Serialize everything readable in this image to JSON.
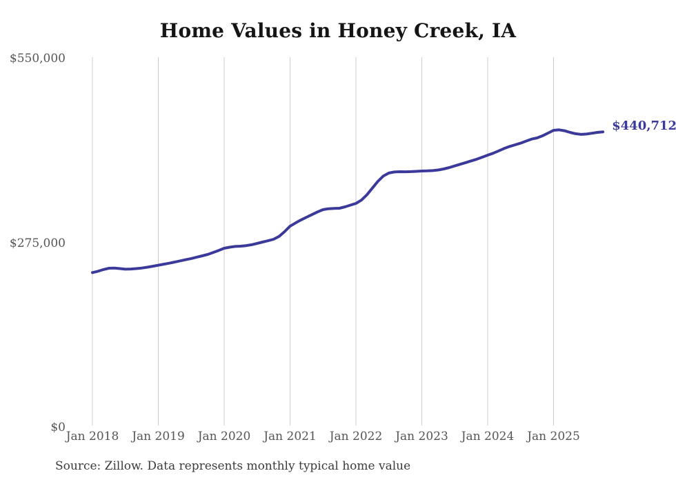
{
  "chart_data": {
    "type": "line",
    "title": "Home Values in Honey Creek, IA",
    "source_note": "Source: Zillow. Data represents monthly typical home value",
    "end_label": "$440,712",
    "end_value": 440712,
    "xlabel": "",
    "ylabel": "",
    "ylim": [
      0,
      550000
    ],
    "y_ticks": [
      "$550,000",
      "$275,000",
      "$0"
    ],
    "y_tick_values": [
      550000,
      275000,
      0
    ],
    "x_ticks": [
      "Jan 2018",
      "Jan 2019",
      "Jan 2020",
      "Jan 2021",
      "Jan 2022",
      "Jan 2023",
      "Jan 2024",
      "Jan 2025"
    ],
    "x_start_month": "2018-01",
    "x_end_month": "2025-10",
    "cadence": "monthly",
    "grid": "vertical-only",
    "legend": "none",
    "line_color": "#3b3999",
    "grid_color": "#cccccc",
    "series": [
      {
        "name": "Typical home value",
        "values": [
          231000,
          233000,
          235500,
          237500,
          237800,
          237000,
          236000,
          236300,
          237000,
          237800,
          239000,
          240500,
          242000,
          243500,
          245000,
          246700,
          248500,
          250200,
          252000,
          254000,
          256000,
          258000,
          261000,
          264000,
          267300,
          268800,
          270000,
          270400,
          271200,
          272500,
          274500,
          276500,
          278500,
          280700,
          285000,
          292000,
          300200,
          305000,
          309500,
          313600,
          317500,
          321500,
          324900,
          326200,
          326700,
          326900,
          329000,
          331500,
          334100,
          339000,
          347000,
          357000,
          367000,
          375000,
          379500,
          381000,
          381400,
          381300,
          381500,
          381900,
          382400,
          382600,
          383000,
          384000,
          385500,
          387600,
          390000,
          392500,
          395000,
          397500,
          400000,
          403000,
          406100,
          409000,
          412500,
          416000,
          419000,
          421500,
          424000,
          427000,
          430000,
          431800,
          435000,
          439000,
          443100,
          443800,
          442500,
          440000,
          438000,
          437000,
          437500,
          438800,
          440000,
          440712
        ]
      }
    ]
  }
}
